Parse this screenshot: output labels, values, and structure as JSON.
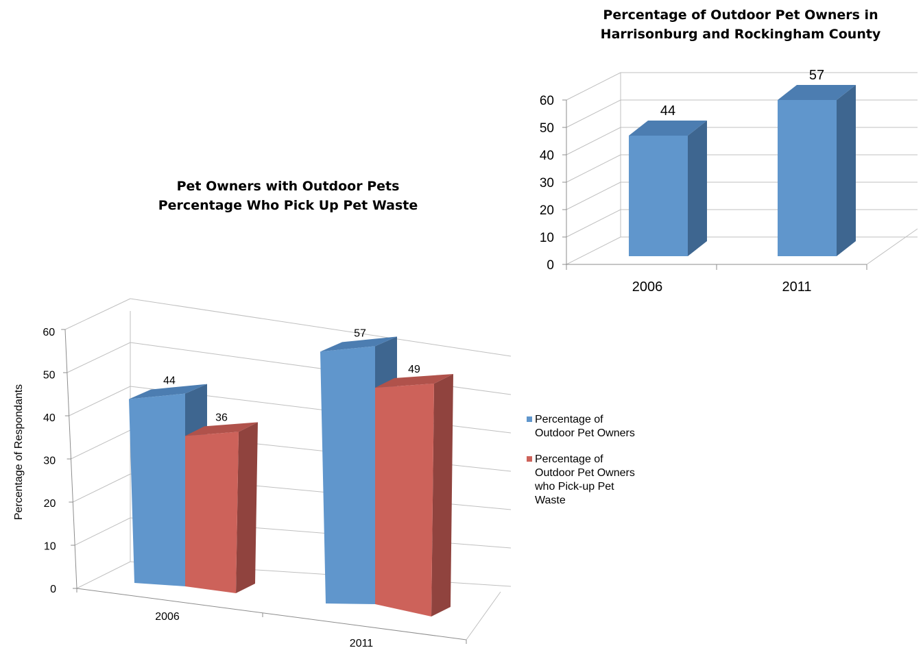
{
  "charts": [
    {
      "title_lines": [
        "Percentage of Outdoor Pet Owners in",
        "Harrisonburg and Rockingham County"
      ]
    },
    {
      "title_lines": [
        "Pet Owners with Outdoor Pets",
        "Percentage Who Pick Up Pet Waste"
      ]
    }
  ],
  "colors": {
    "blue": "#6096cc",
    "blue_side": "#3e6690",
    "blue_top": "#4c7db1",
    "red": "#cd625a",
    "red_side": "#90433e",
    "red_top": "#b0524b",
    "grid": "#bfbfbf",
    "axis": "#8c8c8c"
  },
  "chart_data": [
    {
      "type": "bar",
      "title": "Percentage of Outdoor Pet Owners in Harrisonburg and Rockingham County",
      "categories": [
        "2006",
        "2011"
      ],
      "series": [
        {
          "values": [
            44,
            57
          ]
        }
      ],
      "data_labels": [
        "44",
        "57"
      ],
      "ylim": [
        0,
        60
      ],
      "yticks": [
        "0",
        "10",
        "20",
        "30",
        "40",
        "50",
        "60"
      ],
      "grid": true,
      "style": "3d"
    },
    {
      "type": "bar",
      "title": "Pet Owners with Outdoor Pets Percentage Who Pick Up Pet Waste",
      "ylabel": "Percentage of Respondants",
      "categories": [
        "2006",
        "2011"
      ],
      "series": [
        {
          "name": "Percentage of Outdoor Pet Owners",
          "values": [
            44,
            57
          ]
        },
        {
          "name": "Percentage of Outdoor Pet Owners who Pick-up Pet Waste",
          "values": [
            36,
            49
          ]
        }
      ],
      "data_labels": [
        [
          "44",
          "57"
        ],
        [
          "36",
          "49"
        ]
      ],
      "ylim": [
        0,
        60
      ],
      "yticks": [
        "0",
        "10",
        "20",
        "30",
        "40",
        "50",
        "60"
      ],
      "grid": true,
      "legend": "right",
      "style": "3d"
    }
  ]
}
